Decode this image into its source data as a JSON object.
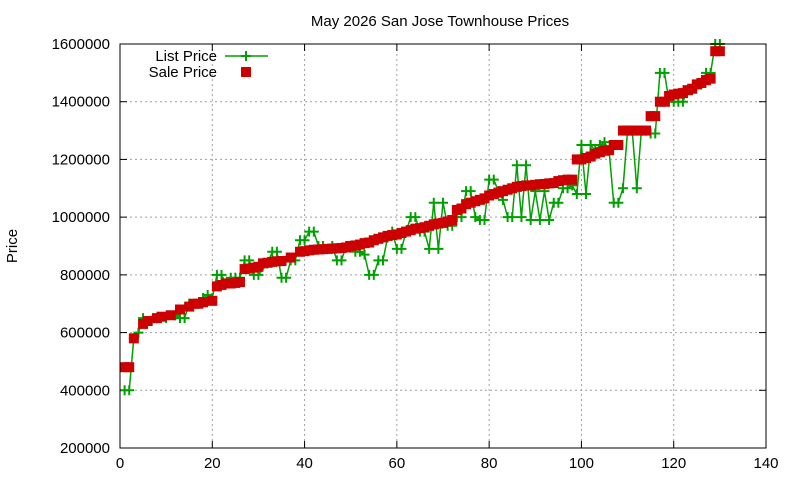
{
  "chart_data": {
    "type": "line",
    "title": "May 2026 San Jose Townhouse Prices",
    "xlabel": "",
    "ylabel": "Price",
    "xlim": [
      0,
      140
    ],
    "ylim": [
      200000,
      1600000
    ],
    "x_ticks": [
      0,
      20,
      40,
      60,
      80,
      100,
      120,
      140
    ],
    "y_ticks": [
      200000,
      400000,
      600000,
      800000,
      1000000,
      1200000,
      1400000,
      1600000
    ],
    "grid": true,
    "legend_position": "top-left",
    "series": [
      {
        "name": "List Price",
        "style": "line-plus",
        "color": "#00a000",
        "points": [
          [
            1,
            400000
          ],
          [
            2,
            400000
          ],
          [
            3,
            580000
          ],
          [
            4,
            600000
          ],
          [
            5,
            650000
          ],
          [
            6,
            640000
          ],
          [
            8,
            650000
          ],
          [
            10,
            650000
          ],
          [
            12,
            660000
          ],
          [
            13,
            650000
          ],
          [
            14,
            650000
          ],
          [
            15,
            700000
          ],
          [
            17,
            700000
          ],
          [
            18,
            720000
          ],
          [
            19,
            730000
          ],
          [
            20,
            720000
          ],
          [
            21,
            800000
          ],
          [
            22,
            800000
          ],
          [
            23,
            770000
          ],
          [
            24,
            790000
          ],
          [
            25,
            790000
          ],
          [
            26,
            790000
          ],
          [
            27,
            850000
          ],
          [
            28,
            850000
          ],
          [
            29,
            800000
          ],
          [
            30,
            800000
          ],
          [
            32,
            840000
          ],
          [
            33,
            880000
          ],
          [
            34,
            880000
          ],
          [
            35,
            790000
          ],
          [
            36,
            790000
          ],
          [
            37,
            850000
          ],
          [
            38,
            850000
          ],
          [
            39,
            920000
          ],
          [
            40,
            920000
          ],
          [
            41,
            950000
          ],
          [
            42,
            950000
          ],
          [
            43,
            900000
          ],
          [
            44,
            900000
          ],
          [
            46,
            900000
          ],
          [
            47,
            850000
          ],
          [
            48,
            850000
          ],
          [
            49,
            900000
          ],
          [
            50,
            900000
          ],
          [
            51,
            880000
          ],
          [
            52,
            880000
          ],
          [
            53,
            870000
          ],
          [
            54,
            800000
          ],
          [
            55,
            800000
          ],
          [
            56,
            850000
          ],
          [
            57,
            850000
          ],
          [
            58,
            930000
          ],
          [
            59,
            950000
          ],
          [
            60,
            890000
          ],
          [
            61,
            890000
          ],
          [
            62,
            950000
          ],
          [
            63,
            1000000
          ],
          [
            64,
            1000000
          ],
          [
            65,
            950000
          ],
          [
            66,
            950000
          ],
          [
            67,
            890000
          ],
          [
            68,
            1050000
          ],
          [
            69,
            890000
          ],
          [
            70,
            1050000
          ],
          [
            71,
            970000
          ],
          [
            72,
            970000
          ],
          [
            73,
            1000000
          ],
          [
            74,
            1000000
          ],
          [
            75,
            1090000
          ],
          [
            76,
            1090000
          ],
          [
            77,
            1000000
          ],
          [
            78,
            990000
          ],
          [
            79,
            990000
          ],
          [
            80,
            1130000
          ],
          [
            81,
            1130000
          ],
          [
            82,
            1090000
          ],
          [
            83,
            1060000
          ],
          [
            84,
            1000000
          ],
          [
            85,
            1000000
          ],
          [
            86,
            1180000
          ],
          [
            87,
            1000000
          ],
          [
            88,
            1180000
          ],
          [
            89,
            990000
          ],
          [
            90,
            1090000
          ],
          [
            91,
            990000
          ],
          [
            92,
            1090000
          ],
          [
            93,
            990000
          ],
          [
            94,
            1050000
          ],
          [
            95,
            1050000
          ],
          [
            96,
            1100000
          ],
          [
            97,
            1100000
          ],
          [
            98,
            1110000
          ],
          [
            99,
            1080000
          ],
          [
            100,
            1250000
          ],
          [
            101,
            1080000
          ],
          [
            102,
            1250000
          ],
          [
            103,
            1230000
          ],
          [
            104,
            1250000
          ],
          [
            105,
            1260000
          ],
          [
            106,
            1230000
          ],
          [
            107,
            1050000
          ],
          [
            108,
            1050000
          ],
          [
            109,
            1100000
          ],
          [
            110,
            1300000
          ],
          [
            111,
            1300000
          ],
          [
            112,
            1100000
          ],
          [
            113,
            1300000
          ],
          [
            114,
            1300000
          ],
          [
            115,
            1290000
          ],
          [
            116,
            1290000
          ],
          [
            117,
            1500000
          ],
          [
            118,
            1500000
          ],
          [
            119,
            1400000
          ],
          [
            120,
            1400000
          ],
          [
            121,
            1400000
          ],
          [
            122,
            1400000
          ],
          [
            123,
            1440000
          ],
          [
            124,
            1440000
          ],
          [
            125,
            1460000
          ],
          [
            126,
            1460000
          ],
          [
            127,
            1500000
          ],
          [
            128,
            1500000
          ],
          [
            129,
            1600000
          ],
          [
            130,
            1600000
          ]
        ]
      },
      {
        "name": "Sale Price",
        "style": "filled-square",
        "color": "#cc0000",
        "points": [
          [
            1,
            480000
          ],
          [
            2,
            480000
          ],
          [
            3,
            580000
          ],
          [
            5,
            630000
          ],
          [
            6,
            640000
          ],
          [
            8,
            650000
          ],
          [
            9,
            655000
          ],
          [
            11,
            660000
          ],
          [
            13,
            680000
          ],
          [
            15,
            690000
          ],
          [
            16,
            700000
          ],
          [
            17,
            700000
          ],
          [
            18,
            705000
          ],
          [
            20,
            710000
          ],
          [
            21,
            760000
          ],
          [
            22,
            765000
          ],
          [
            23,
            770000
          ],
          [
            24,
            770000
          ],
          [
            25,
            772000
          ],
          [
            26,
            775000
          ],
          [
            27,
            820000
          ],
          [
            28,
            822000
          ],
          [
            29,
            825000
          ],
          [
            30,
            828000
          ],
          [
            31,
            840000
          ],
          [
            32,
            842000
          ],
          [
            33,
            845000
          ],
          [
            34,
            847000
          ],
          [
            35,
            848000
          ],
          [
            37,
            860000
          ],
          [
            39,
            880000
          ],
          [
            40,
            882000
          ],
          [
            41,
            885000
          ],
          [
            42,
            887000
          ],
          [
            43,
            888000
          ],
          [
            44,
            889000
          ],
          [
            45,
            890000
          ],
          [
            46,
            891000
          ],
          [
            47,
            892000
          ],
          [
            48,
            893000
          ],
          [
            49,
            895000
          ],
          [
            50,
            900000
          ],
          [
            51,
            902000
          ],
          [
            52,
            905000
          ],
          [
            53,
            910000
          ],
          [
            54,
            912000
          ],
          [
            55,
            920000
          ],
          [
            56,
            925000
          ],
          [
            57,
            930000
          ],
          [
            58,
            935000
          ],
          [
            59,
            938000
          ],
          [
            60,
            940000
          ],
          [
            61,
            945000
          ],
          [
            62,
            950000
          ],
          [
            63,
            955000
          ],
          [
            64,
            960000
          ],
          [
            65,
            962000
          ],
          [
            66,
            965000
          ],
          [
            67,
            970000
          ],
          [
            68,
            975000
          ],
          [
            69,
            978000
          ],
          [
            70,
            980000
          ],
          [
            71,
            985000
          ],
          [
            72,
            990000
          ],
          [
            73,
            1025000
          ],
          [
            74,
            1030000
          ],
          [
            75,
            1045000
          ],
          [
            76,
            1050000
          ],
          [
            77,
            1055000
          ],
          [
            78,
            1060000
          ],
          [
            79,
            1065000
          ],
          [
            80,
            1075000
          ],
          [
            81,
            1080000
          ],
          [
            82,
            1085000
          ],
          [
            83,
            1090000
          ],
          [
            84,
            1095000
          ],
          [
            85,
            1100000
          ],
          [
            86,
            1105000
          ],
          [
            87,
            1108000
          ],
          [
            88,
            1110000
          ],
          [
            89,
            1110000
          ],
          [
            90,
            1112000
          ],
          [
            91,
            1114000
          ],
          [
            92,
            1115000
          ],
          [
            93,
            1117000
          ],
          [
            94,
            1118000
          ],
          [
            95,
            1125000
          ],
          [
            96,
            1128000
          ],
          [
            97,
            1130000
          ],
          [
            98,
            1130000
          ],
          [
            99,
            1200000
          ],
          [
            100,
            1200000
          ],
          [
            101,
            1205000
          ],
          [
            102,
            1210000
          ],
          [
            103,
            1220000
          ],
          [
            104,
            1225000
          ],
          [
            105,
            1230000
          ],
          [
            106,
            1232000
          ],
          [
            107,
            1250000
          ],
          [
            108,
            1250000
          ],
          [
            109,
            1300000
          ],
          [
            110,
            1300000
          ],
          [
            111,
            1300000
          ],
          [
            112,
            1300000
          ],
          [
            113,
            1300000
          ],
          [
            114,
            1300000
          ],
          [
            115,
            1350000
          ],
          [
            116,
            1350000
          ],
          [
            117,
            1400000
          ],
          [
            118,
            1400000
          ],
          [
            119,
            1420000
          ],
          [
            120,
            1425000
          ],
          [
            121,
            1428000
          ],
          [
            122,
            1430000
          ],
          [
            123,
            1440000
          ],
          [
            124,
            1445000
          ],
          [
            125,
            1460000
          ],
          [
            126,
            1465000
          ],
          [
            127,
            1475000
          ],
          [
            128,
            1480000
          ],
          [
            129,
            1575000
          ],
          [
            130,
            1575000
          ]
        ]
      }
    ]
  }
}
